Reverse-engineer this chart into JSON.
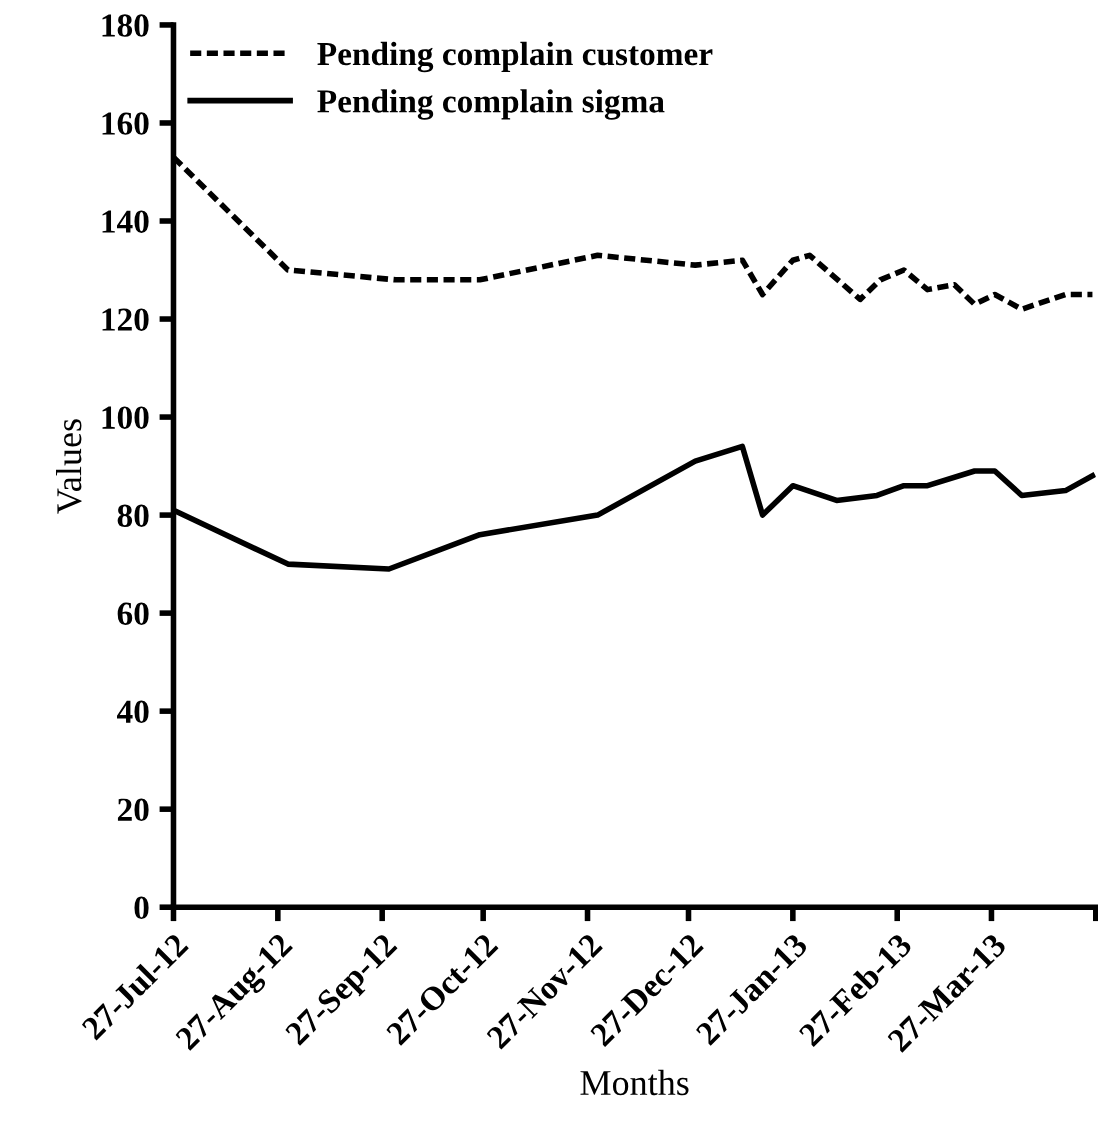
{
  "chart_data": {
    "type": "line",
    "xlabel": "Months",
    "ylabel": "Values",
    "xlim": [
      "2012-07-27",
      "2013-04-27"
    ],
    "xticks": [
      {
        "value": "2012-07-27",
        "label": "27-Jul-12"
      },
      {
        "value": "2012-08-27",
        "label": "27-Aug-12"
      },
      {
        "value": "2012-09-27",
        "label": "27-Sep-12"
      },
      {
        "value": "2012-10-27",
        "label": "27-Oct-12"
      },
      {
        "value": "2012-11-27",
        "label": "27-Nov-12"
      },
      {
        "value": "2012-12-27",
        "label": "27-Dec-12"
      },
      {
        "value": "2013-01-27",
        "label": "27-Jan-13"
      },
      {
        "value": "2013-02-27",
        "label": "27-Feb-13"
      },
      {
        "value": "2013-03-27",
        "label": "27-Mar-13"
      },
      {
        "value": "2013-04-27",
        "label": null
      }
    ],
    "ylim": [
      0,
      180
    ],
    "yticks": [
      0,
      20,
      40,
      60,
      80,
      100,
      120,
      140,
      160,
      180
    ],
    "grid": false,
    "legend": "top left",
    "marker": "none",
    "series": [
      {
        "name": "Pending complain customer",
        "color": "#000000",
        "line_style": "dashed",
        "x": [
          "2012-07-27",
          "2012-08-30",
          "2012-10-01",
          "2012-10-26",
          "2012-11-30",
          "2012-12-29",
          "2013-01-12",
          "2013-01-18",
          "2013-01-27",
          "2013-02-01",
          "2013-02-16",
          "2013-02-22",
          "2013-03-01",
          "2013-03-08",
          "2013-03-16",
          "2013-03-22",
          "2013-03-28",
          "2013-04-05",
          "2013-04-18",
          "2013-04-26"
        ],
        "values": [
          153,
          130,
          128,
          128,
          133,
          131,
          132,
          125,
          132,
          133,
          124,
          128,
          130,
          126,
          127,
          123,
          125,
          122,
          125,
          125
        ]
      },
      {
        "name": "Pending complain sigma",
        "color": "#000000",
        "line_style": "solid",
        "x": [
          "2012-07-27",
          "2012-08-30",
          "2012-09-29",
          "2012-10-26",
          "2012-11-30",
          "2012-12-29",
          "2013-01-12",
          "2013-01-18",
          "2013-01-27",
          "2013-02-09",
          "2013-02-21",
          "2013-03-01",
          "2013-03-08",
          "2013-03-22",
          "2013-03-28",
          "2013-04-05",
          "2013-04-18",
          "2013-04-26"
        ],
        "values": [
          81,
          70,
          69,
          76,
          80,
          91,
          94,
          80,
          86,
          83,
          84,
          86,
          86,
          89,
          89,
          84,
          85,
          88
        ]
      }
    ]
  }
}
